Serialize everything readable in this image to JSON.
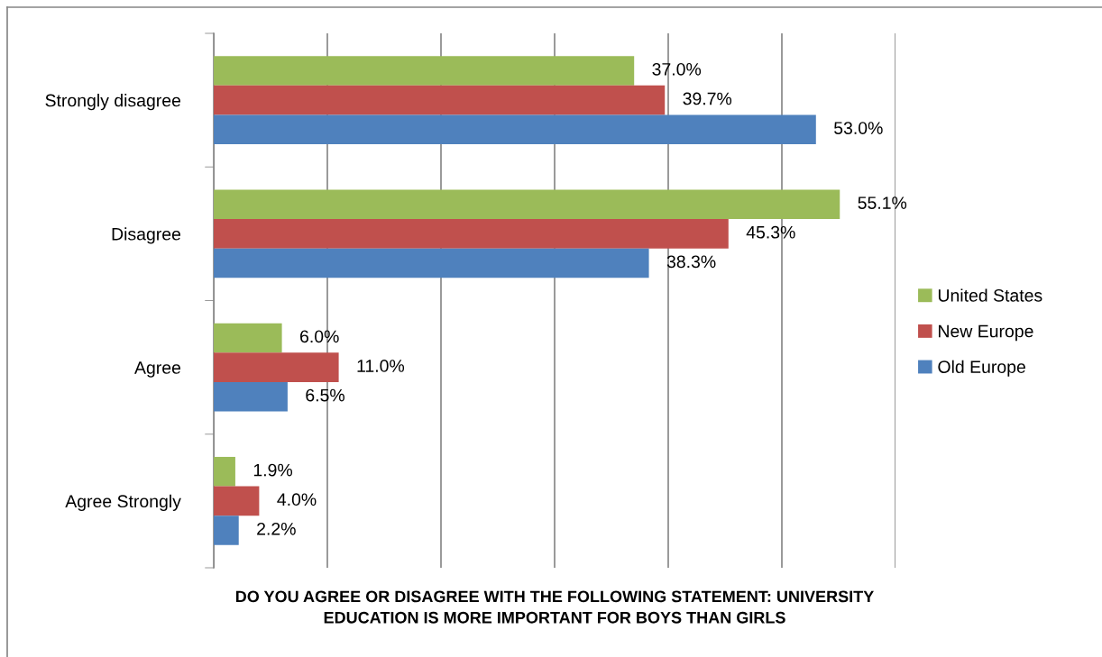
{
  "chart_data": {
    "type": "bar",
    "orientation": "horizontal",
    "categories": [
      "Strongly disagree",
      "Disagree",
      "Agree",
      "Agree Strongly"
    ],
    "series": [
      {
        "name": "United States",
        "color": "#9bbb59",
        "values": [
          37.0,
          55.1,
          6.0,
          1.9
        ],
        "value_labels": [
          "37.0%",
          "55.1%",
          "6.0%",
          "1.9%"
        ]
      },
      {
        "name": "New Europe",
        "color": "#c0504d",
        "values": [
          39.7,
          45.3,
          11.0,
          4.0
        ],
        "value_labels": [
          "39.7%",
          "45.3%",
          "11.0%",
          "4.0%"
        ]
      },
      {
        "name": "Old Europe",
        "color": "#4f81bd",
        "values": [
          53.0,
          38.3,
          6.5,
          2.2
        ],
        "value_labels": [
          "53.0%",
          "38.3%",
          "6.5%",
          "2.2%"
        ]
      }
    ],
    "xlim": [
      0,
      60
    ],
    "xticks": [
      {
        "value": 0,
        "label": null
      },
      {
        "value": 10,
        "label": null
      },
      {
        "value": 20,
        "label": null
      },
      {
        "value": 30,
        "label": null
      },
      {
        "value": 40,
        "label": null
      },
      {
        "value": 50,
        "label": null
      },
      {
        "value": 60,
        "label": null
      }
    ],
    "grid": "x",
    "legend": "right",
    "tick_labels": "y",
    "xlabel": "DO YOU AGREE OR DISAGREE WITH THE FOLLOWING STATEMENT: UNIVERSITY\nEDUCATION IS MORE IMPORTANT FOR BOYS THAN GIRLS"
  }
}
